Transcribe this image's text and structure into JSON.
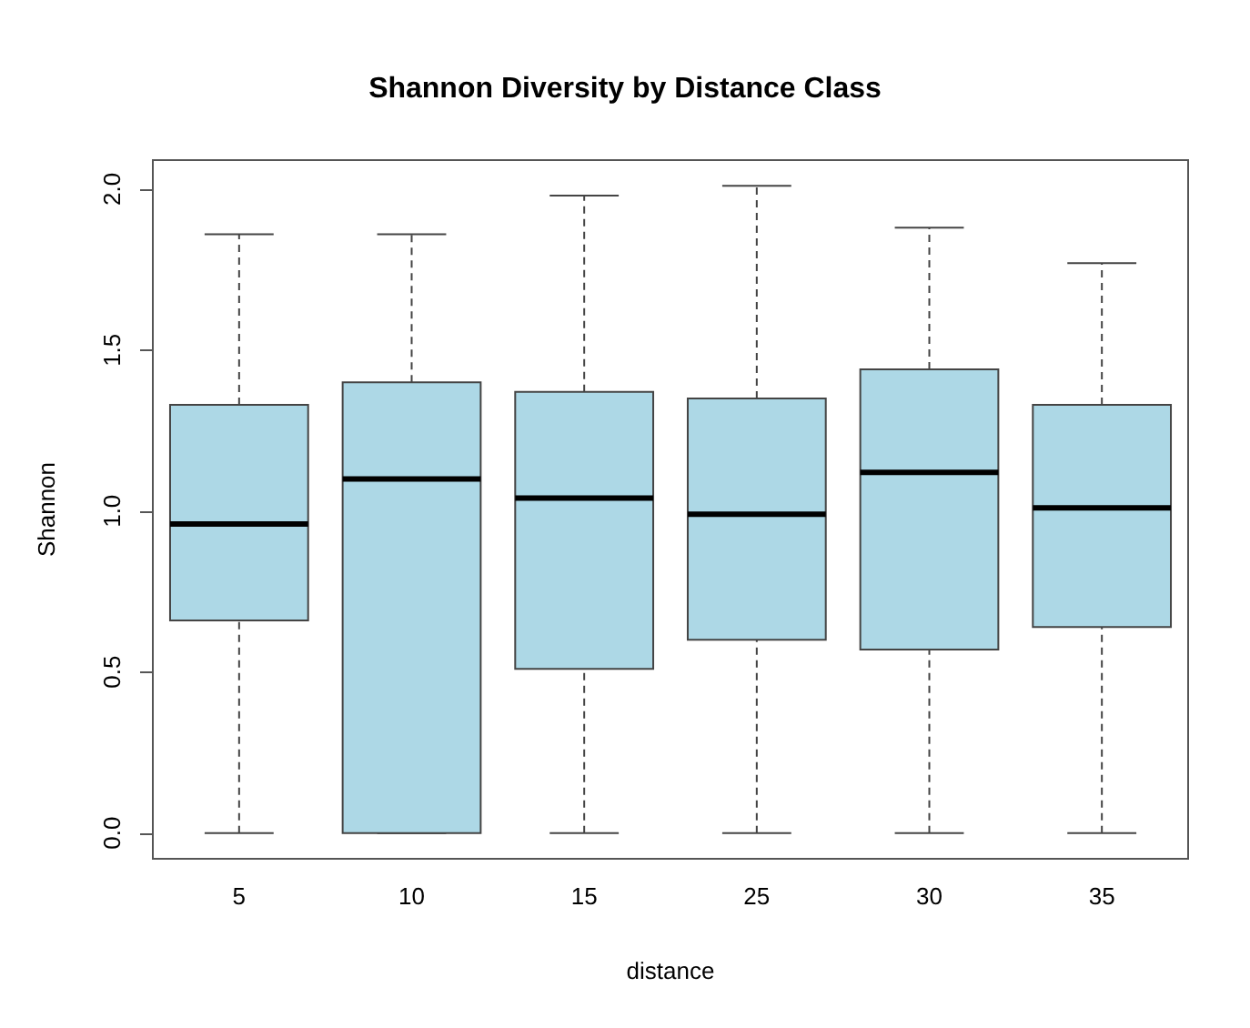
{
  "chart_data": {
    "type": "box",
    "title": "Shannon Diversity by Distance Class",
    "xlabel": "distance",
    "ylabel": "Shannon",
    "categories": [
      "5",
      "10",
      "15",
      "25",
      "30",
      "35"
    ],
    "color": "#add8e6",
    "ylim": [
      -0.08,
      2.09
    ],
    "yticks": [
      {
        "value": 0,
        "label": "0.0"
      },
      {
        "value": 0.5,
        "label": "0.5"
      },
      {
        "value": 1,
        "label": "1.0"
      },
      {
        "value": 1.5,
        "label": "1.5"
      },
      {
        "value": 2,
        "label": "2.0"
      }
    ],
    "grid": false,
    "boxes": [
      {
        "low": 0,
        "q1": 0.66,
        "median": 0.96,
        "q3": 1.33,
        "high": 1.86
      },
      {
        "low": 0,
        "q1": 0,
        "median": 1.1,
        "q3": 1.4,
        "high": 1.86
      },
      {
        "low": 0,
        "q1": 0.51,
        "median": 1.04,
        "q3": 1.37,
        "high": 1.98
      },
      {
        "low": 0,
        "q1": 0.6,
        "median": 0.99,
        "q3": 1.35,
        "high": 2.01
      },
      {
        "low": 0,
        "q1": 0.57,
        "median": 1.12,
        "q3": 1.44,
        "high": 1.88
      },
      {
        "low": 0,
        "q1": 0.64,
        "median": 1.01,
        "q3": 1.33,
        "high": 1.77
      }
    ]
  }
}
